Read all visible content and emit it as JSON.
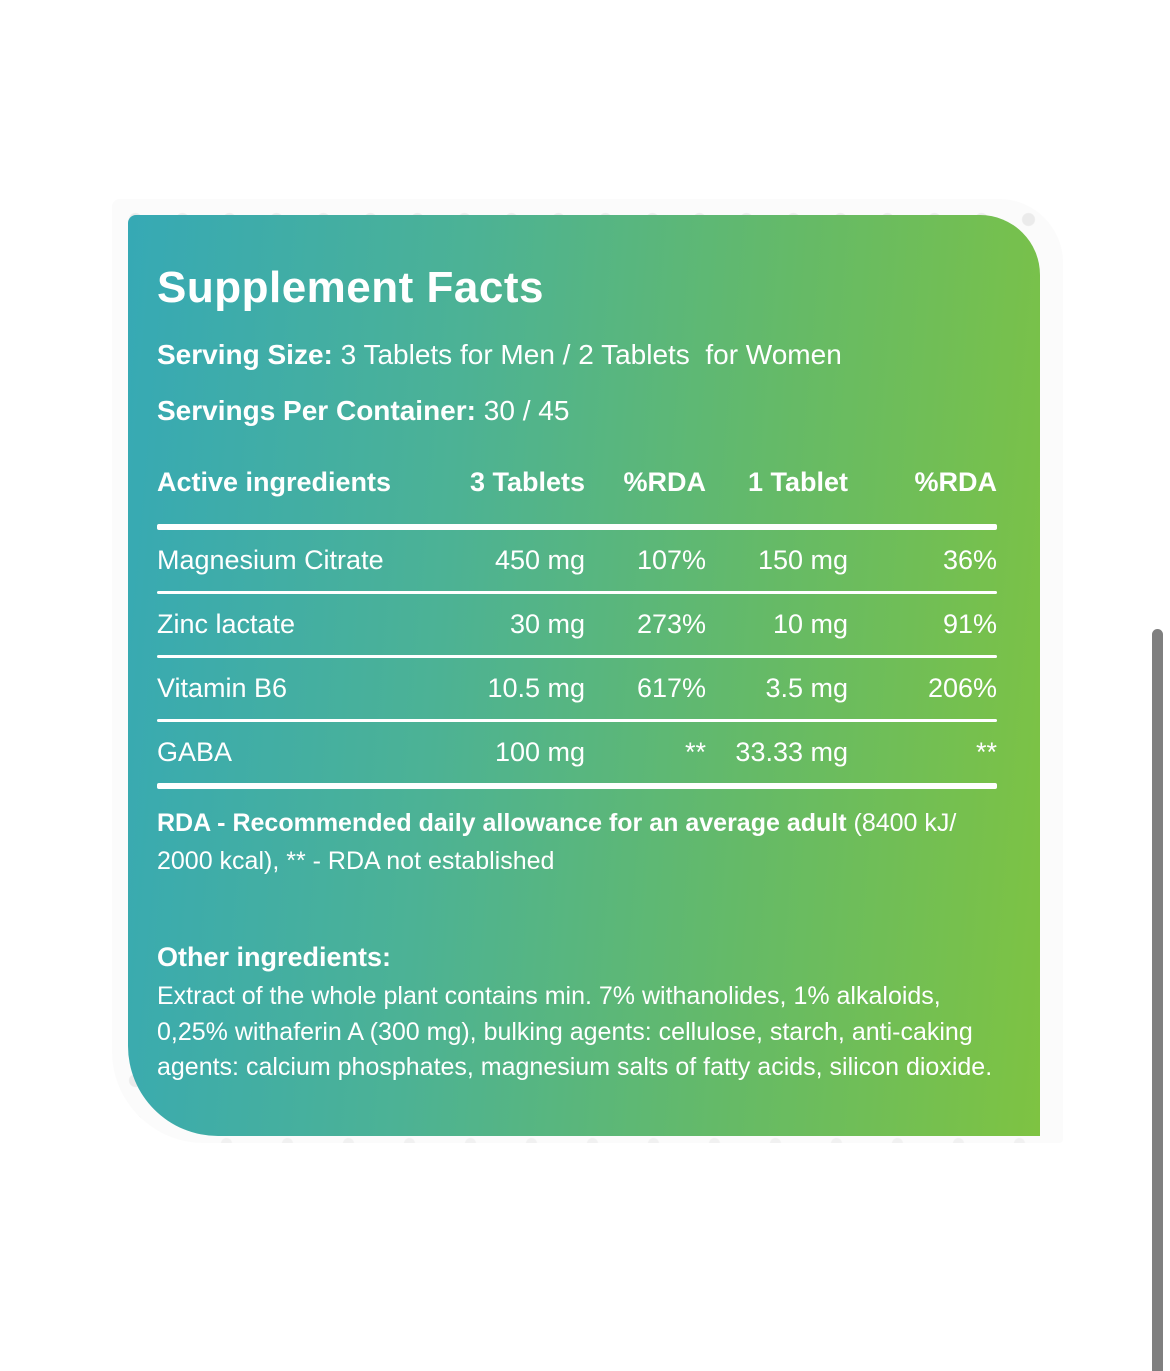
{
  "card": {
    "title": "Supplement Facts",
    "serving_size_label": "Serving Size:",
    "serving_size_value": " 3 Tablets for Men / 2 Tablets  for Women",
    "servings_label": "Servings Per Container:",
    "servings_value": " 30 / 45",
    "table": {
      "headers": [
        "Active ingredients",
        "3 Tablets",
        "%RDA",
        "1 Tablet",
        "%RDA"
      ],
      "rows": [
        {
          "name": "Magnesium Citrate",
          "three_tablets": "450 mg",
          "rda3": "107%",
          "one_tablet": "150 mg",
          "rda1": "36%"
        },
        {
          "name": "Zinc lactate",
          "three_tablets": "30 mg",
          "rda3": "273%",
          "one_tablet": "10 mg",
          "rda1": "91%"
        },
        {
          "name": "Vitamin B6",
          "three_tablets": "10.5 mg",
          "rda3": "617%",
          "one_tablet": "3.5 mg",
          "rda1": "206%"
        },
        {
          "name": "GABA",
          "three_tablets": "100 mg",
          "rda3": "**",
          "one_tablet": "33.33 mg",
          "rda1": "**"
        }
      ]
    },
    "footnote_bold": "RDA - Recommended daily allowance for an average adult",
    "footnote_regular": " (8400 kJ/ 2000 kcal), ** - RDA not established",
    "other_ingredients_heading": "Other ingredients:",
    "other_ingredients_text": "Extract of the whole plant contains min. 7% withanolides, 1% alkaloids, 0,25% withaferin A (300 mg), bulking agents: cellulose, starch, anti-caking agents: calcium phosphates, magnesium salts of fatty acids, silicon dioxide."
  },
  "colors": {
    "gradient_left": "#36a9b5",
    "gradient_right": "#7ec342",
    "text": "#ffffff",
    "scrollbar_thumb": "#7f7f7f",
    "backdrop_dots": "#ebebeb"
  }
}
